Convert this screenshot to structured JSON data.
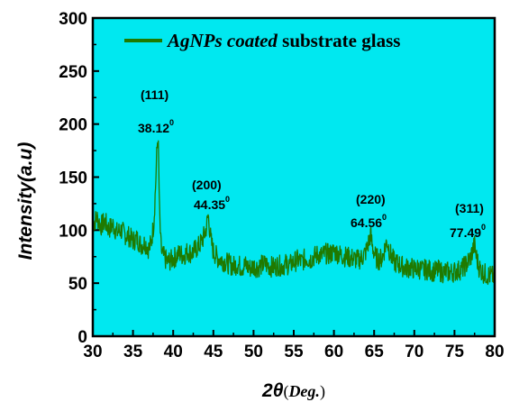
{
  "colors": {
    "plot_background": "#00e8f0",
    "series": "#1f7a00",
    "axis": "#000000"
  },
  "chart_data": {
    "type": "line",
    "title": "",
    "xlabel": {
      "symbol": "2θ",
      "open": "(",
      "unit": "Deg.",
      "close": ")"
    },
    "ylabel": "Intensity(a.u)",
    "xlim": [
      30,
      80
    ],
    "ylim": [
      0,
      300
    ],
    "xticks": [
      30,
      35,
      40,
      45,
      50,
      55,
      60,
      65,
      70,
      75,
      80
    ],
    "yticks": [
      0,
      50,
      100,
      150,
      200,
      250,
      300
    ],
    "grid": false,
    "legend": {
      "placement": "top",
      "entries": [
        {
          "italic": "AgNPs coated",
          "plain": " substrate glass"
        }
      ]
    },
    "series": [
      {
        "x": [
          30.0,
          30.5,
          31.0,
          31.5,
          32.0,
          32.5,
          33.0,
          33.5,
          34.0,
          34.5,
          35.0,
          35.5,
          36.0,
          36.5,
          37.0,
          37.3,
          37.6,
          37.8,
          37.95,
          38.05,
          38.12,
          38.2,
          38.3,
          38.45,
          38.6,
          38.9,
          39.3,
          39.8,
          40.3,
          40.8,
          41.3,
          41.8,
          42.3,
          42.8,
          43.3,
          43.7,
          44.0,
          44.2,
          44.35,
          44.5,
          44.7,
          45.0,
          45.5,
          46.0,
          46.5,
          47.0,
          47.5,
          48.0,
          48.5,
          49.0,
          49.5,
          50.0,
          50.5,
          51.0,
          51.5,
          52.0,
          52.5,
          53.0,
          53.5,
          54.0,
          54.5,
          55.0,
          55.5,
          56.0,
          56.5,
          57.0,
          57.5,
          58.0,
          58.5,
          59.0,
          59.5,
          60.0,
          60.5,
          61.0,
          61.5,
          62.0,
          62.5,
          63.0,
          63.5,
          64.0,
          64.3,
          64.56,
          64.8,
          65.2,
          65.6,
          66.0,
          66.3,
          66.6,
          67.0,
          67.5,
          68.0,
          68.5,
          69.0,
          69.5,
          70.0,
          70.5,
          71.0,
          71.5,
          72.0,
          72.5,
          73.0,
          73.5,
          74.0,
          74.5,
          75.0,
          75.5,
          76.0,
          76.5,
          77.0,
          77.3,
          77.49,
          77.7,
          78.0,
          78.5,
          79.0,
          79.5,
          80.0
        ],
        "y": [
          105,
          112,
          104,
          108,
          101,
          105,
          98,
          100,
          96,
          94,
          90,
          92,
          86,
          88,
          82,
          90,
          108,
          140,
          170,
          184,
          186,
          160,
          118,
          88,
          78,
          74,
          70,
          72,
          75,
          78,
          76,
          80,
          78,
          82,
          86,
          92,
          98,
          106,
          114,
          104,
          90,
          80,
          74,
          72,
          70,
          68,
          66,
          68,
          65,
          67,
          64,
          66,
          65,
          67,
          68,
          66,
          65,
          67,
          66,
          68,
          67,
          70,
          72,
          70,
          74,
          72,
          75,
          77,
          76,
          78,
          77,
          80,
          78,
          76,
          75,
          74,
          73,
          72,
          74,
          80,
          88,
          96,
          84,
          74,
          72,
          74,
          82,
          90,
          78,
          70,
          68,
          66,
          64,
          65,
          63,
          64,
          62,
          63,
          62,
          61,
          62,
          60,
          61,
          60,
          61,
          62,
          64,
          68,
          74,
          82,
          86,
          76,
          66,
          60,
          58,
          57,
          56
        ]
      }
    ],
    "annotations": [
      {
        "hkl": "(111)",
        "angle": "38.12",
        "deg": "0"
      },
      {
        "hkl": "(200)",
        "angle": "44.35",
        "deg": "0"
      },
      {
        "hkl": "(220)",
        "angle": "64.56",
        "deg": "0"
      },
      {
        "hkl": "(311)",
        "angle": "77.49",
        "deg": "0"
      }
    ]
  }
}
